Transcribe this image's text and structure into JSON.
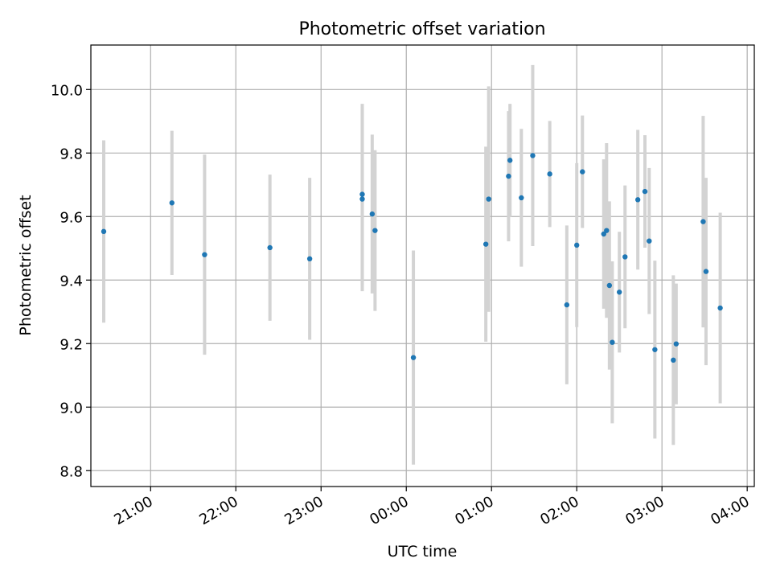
{
  "chart_data": {
    "type": "scatter",
    "title": "Photometric offset variation",
    "xlabel": "UTC time",
    "ylabel": "Photometric offset",
    "x_ticks": [
      "21:00",
      "22:00",
      "23:00",
      "00:00",
      "01:00",
      "02:00",
      "03:00",
      "04:00"
    ],
    "y_ticks": [
      "8.8",
      "9.0",
      "9.2",
      "9.4",
      "9.6",
      "9.8",
      "10.0"
    ],
    "xlim": [
      "20:27",
      "04:05"
    ],
    "ylim": [
      8.75,
      10.14
    ],
    "grid": true,
    "colors": {
      "point": "#1f77b4",
      "errorbar": "#d3d3d3",
      "grid": "#b0b0b0"
    },
    "series": [
      {
        "points": [
          {
            "time": "20:27",
            "y": 9.553,
            "err": 0.287
          },
          {
            "time": "21:15",
            "y": 9.643,
            "err": 0.227
          },
          {
            "time": "21:38",
            "y": 9.48,
            "err": 0.315
          },
          {
            "time": "22:24",
            "y": 9.502,
            "err": 0.23
          },
          {
            "time": "22:52",
            "y": 9.467,
            "err": 0.255
          },
          {
            "time": "23:29",
            "y": 9.67,
            "err": 0.285
          },
          {
            "time": "23:29",
            "y": 9.655,
            "err": 0.29
          },
          {
            "time": "23:36",
            "y": 9.608,
            "err": 0.25
          },
          {
            "time": "23:38",
            "y": 9.556,
            "err": 0.253
          },
          {
            "time": "00:05",
            "y": 9.156,
            "err": 0.337
          },
          {
            "time": "00:56",
            "y": 9.513,
            "err": 0.307
          },
          {
            "time": "00:58",
            "y": 9.655,
            "err": 0.355
          },
          {
            "time": "01:12",
            "y": 9.727,
            "err": 0.205
          },
          {
            "time": "01:13",
            "y": 9.777,
            "err": 0.178
          },
          {
            "time": "01:21",
            "y": 9.659,
            "err": 0.217
          },
          {
            "time": "01:29",
            "y": 9.792,
            "err": 0.285
          },
          {
            "time": "01:41",
            "y": 9.734,
            "err": 0.167
          },
          {
            "time": "01:53",
            "y": 9.322,
            "err": 0.25
          },
          {
            "time": "02:00",
            "y": 9.51,
            "err": 0.258
          },
          {
            "time": "02:04",
            "y": 9.741,
            "err": 0.177
          },
          {
            "time": "02:19",
            "y": 9.545,
            "err": 0.235
          },
          {
            "time": "02:21",
            "y": 9.556,
            "err": 0.275
          },
          {
            "time": "02:23",
            "y": 9.383,
            "err": 0.265
          },
          {
            "time": "02:25",
            "y": 9.204,
            "err": 0.255
          },
          {
            "time": "02:30",
            "y": 9.362,
            "err": 0.19
          },
          {
            "time": "02:34",
            "y": 9.473,
            "err": 0.225
          },
          {
            "time": "02:43",
            "y": 9.653,
            "err": 0.22
          },
          {
            "time": "02:48",
            "y": 9.679,
            "err": 0.177
          },
          {
            "time": "02:51",
            "y": 9.523,
            "err": 0.23
          },
          {
            "time": "02:55",
            "y": 9.181,
            "err": 0.28
          },
          {
            "time": "03:08",
            "y": 9.148,
            "err": 0.267
          },
          {
            "time": "03:10",
            "y": 9.199,
            "err": 0.19
          },
          {
            "time": "03:29",
            "y": 9.584,
            "err": 0.333
          },
          {
            "time": "03:31",
            "y": 9.427,
            "err": 0.295
          },
          {
            "time": "03:41",
            "y": 9.312,
            "err": 0.3
          }
        ]
      }
    ]
  }
}
